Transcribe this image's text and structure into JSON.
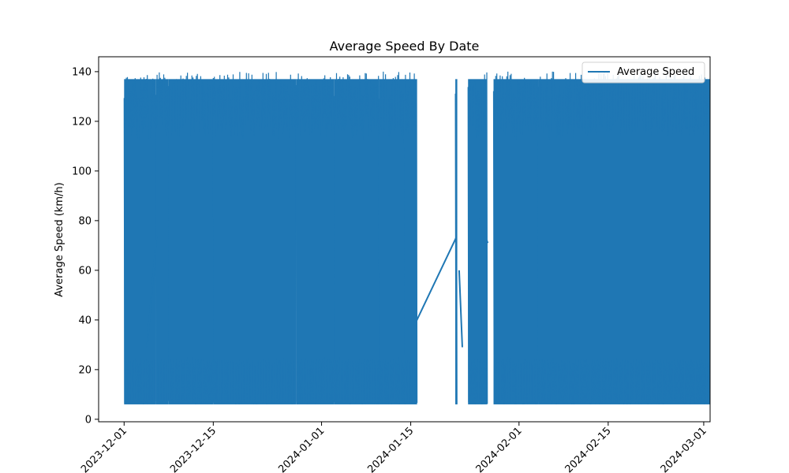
{
  "chart_data": {
    "type": "line",
    "title": "Average Speed By Date",
    "xlabel": "",
    "ylabel": "Average Speed (km/h)",
    "xlim": [
      "2023-11-27",
      "2024-03-02"
    ],
    "ylim": [
      -1,
      146
    ],
    "yticks": [
      0,
      20,
      40,
      60,
      80,
      100,
      120,
      140
    ],
    "xticks": [
      "2023-12-01",
      "2023-12-15",
      "2024-01-01",
      "2024-01-15",
      "2024-02-01",
      "2024-02-15",
      "2024-03-01"
    ],
    "grid": false,
    "legend_position": "top-right",
    "series": [
      {
        "name": "Average Speed",
        "color": "#1f77b4",
        "value_range": [
          6,
          140
        ],
        "dense_date_ranges": [
          [
            "2023-12-01",
            "2023-12-05"
          ],
          [
            "2023-12-06",
            "2023-12-07"
          ],
          [
            "2023-12-08",
            "2023-12-14"
          ],
          [
            "2023-12-15",
            "2023-12-27"
          ],
          [
            "2023-12-28",
            "2024-01-02"
          ],
          [
            "2024-01-03",
            "2024-01-09"
          ],
          [
            "2024-01-10",
            "2024-01-13"
          ],
          [
            "2024-01-14",
            "2024-01-15"
          ],
          [
            "2024-01-22",
            "2024-01-22"
          ],
          [
            "2024-01-24",
            "2024-01-26"
          ],
          [
            "2024-01-28",
            "2024-02-03"
          ],
          [
            "2024-02-04",
            "2024-03-01"
          ]
        ],
        "bridges": [
          {
            "from": [
              "2023-12-04",
              29
            ],
            "to": [
              "2023-12-06",
              74
            ]
          },
          {
            "from": [
              "2024-01-15",
              38
            ],
            "to": [
              "2024-01-22",
              73
            ]
          },
          {
            "from": [
              "2024-01-22",
              60
            ],
            "to": [
              "2024-01-23",
              29
            ]
          },
          {
            "from": [
              "2024-01-25",
              81
            ],
            "to": [
              "2024-01-27",
              71
            ]
          }
        ]
      }
    ]
  }
}
